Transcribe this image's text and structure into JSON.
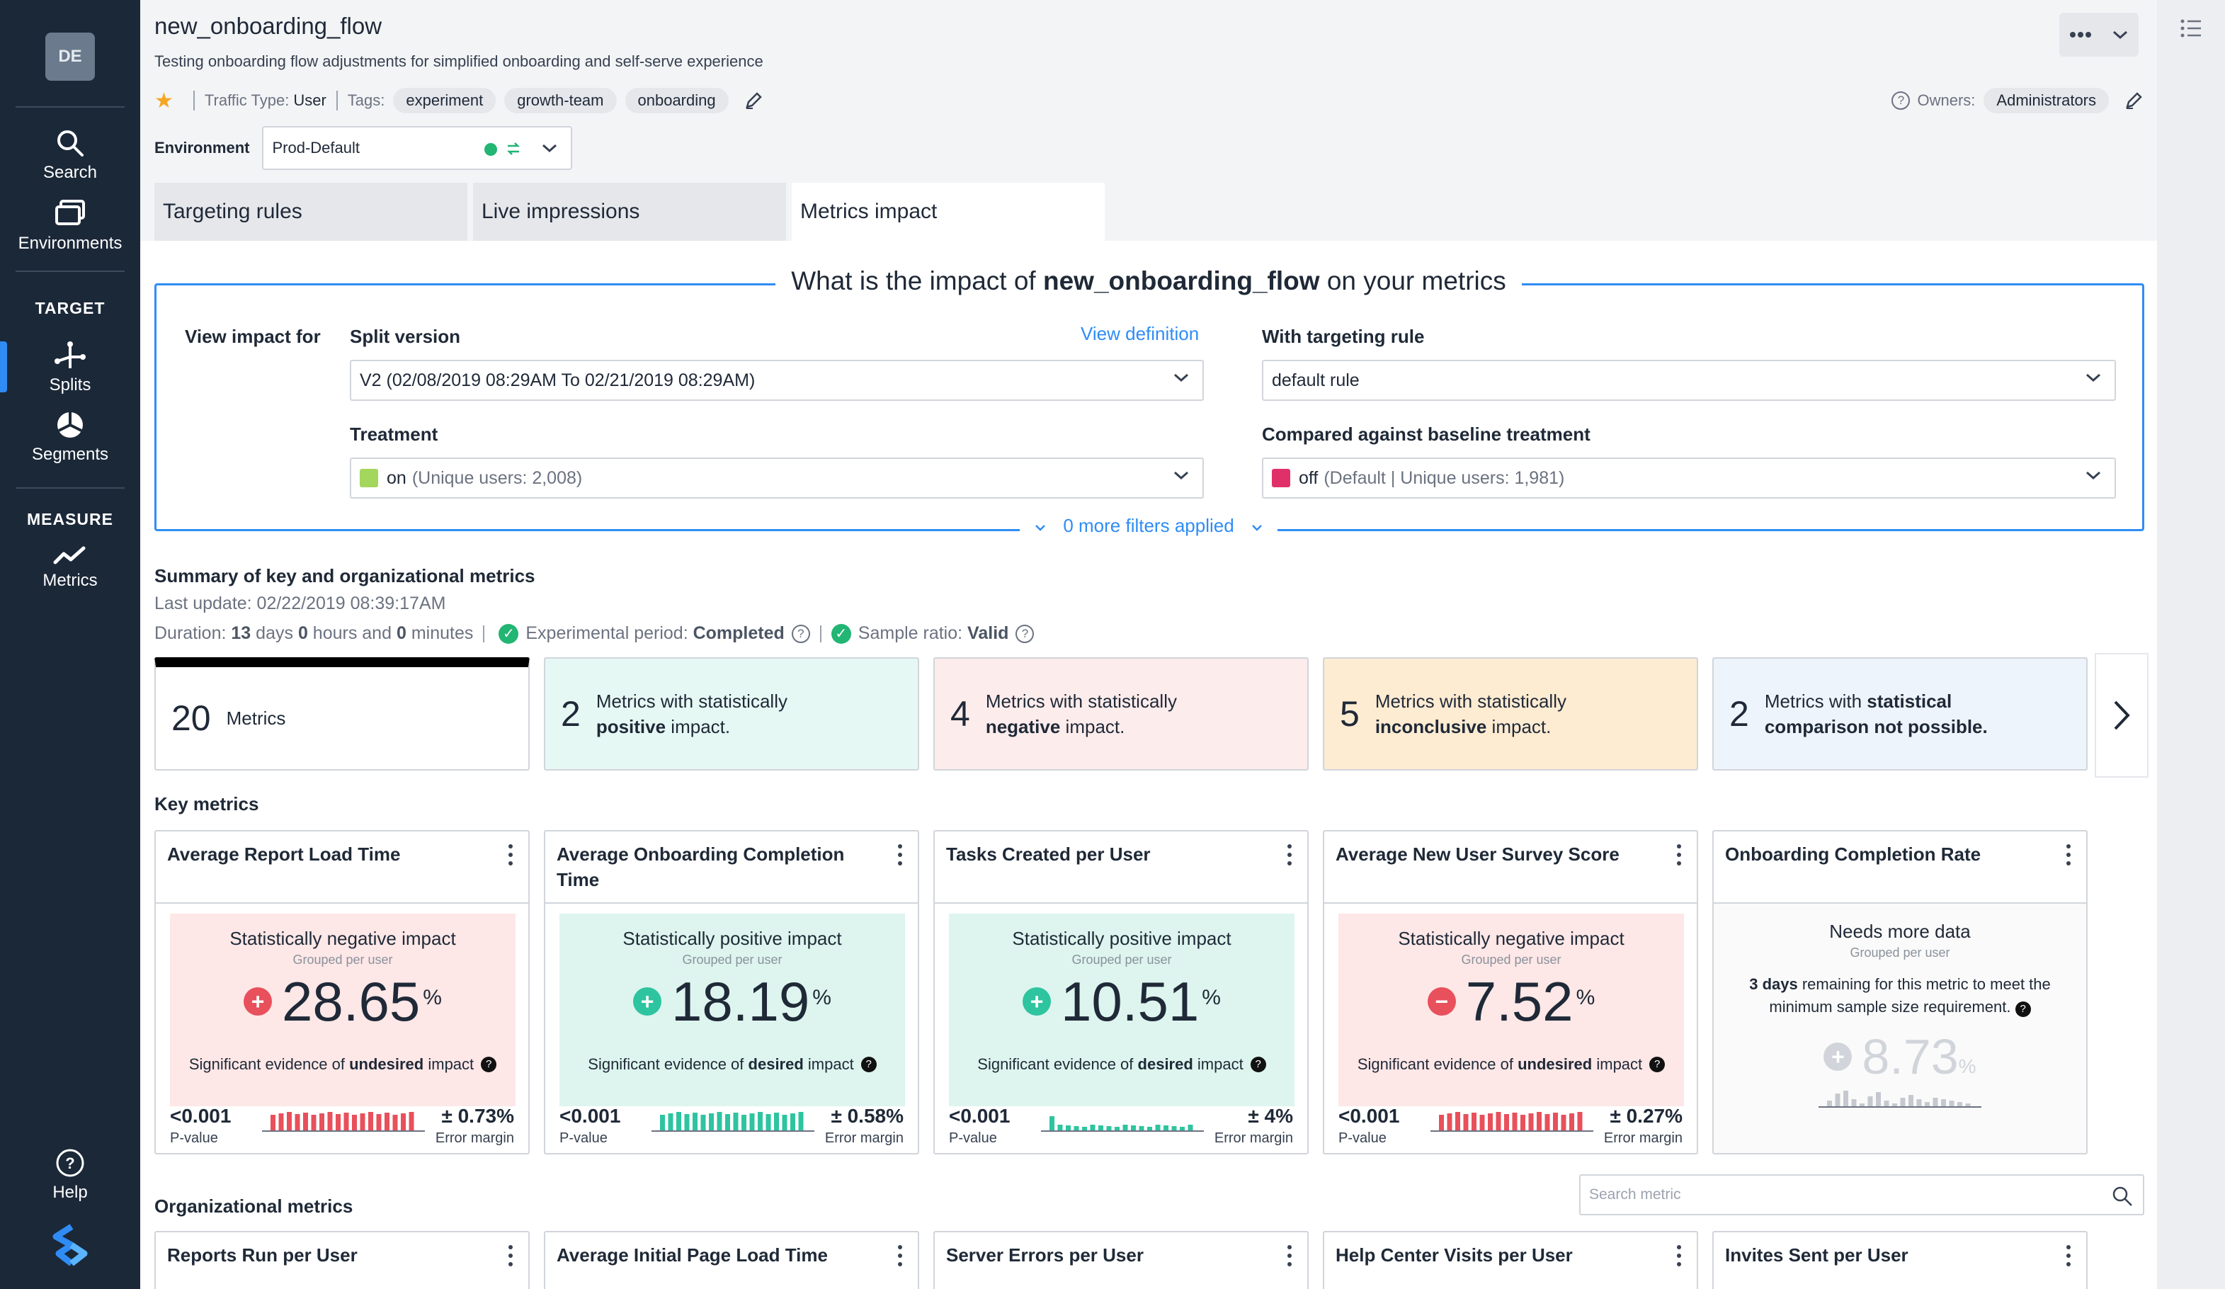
{
  "sidebar": {
    "avatar": "DE",
    "search": "Search",
    "environments": "Environments",
    "target_heading": "TARGET",
    "splits": "Splits",
    "segments": "Segments",
    "measure_heading": "MEASURE",
    "metrics": "Metrics",
    "help": "Help"
  },
  "header": {
    "flag_name": "new_onboarding_flow",
    "description": "Testing onboarding flow adjustments for simplified onboarding and self-serve experience",
    "traffic_type_label": "Traffic Type:",
    "traffic_type_value": "User",
    "tags_label": "Tags:",
    "tags": [
      "experiment",
      "growth-team",
      "onboarding"
    ],
    "owners_label": "Owners:",
    "owner": "Administrators",
    "environment_label": "Environment",
    "environment_value": "Prod-Default"
  },
  "tabs": [
    "Targeting rules",
    "Live impressions",
    "Metrics impact"
  ],
  "impact": {
    "title_prefix": "What is the impact of",
    "title_flag": "new_onboarding_flow",
    "title_suffix": "on your metrics",
    "view_impact_for": "View impact for",
    "split_version_label": "Split version",
    "view_definition": "View definition",
    "split_version_value": "V2 (02/08/2019 08:29AM To 02/21/2019 08:29AM)",
    "targeting_rule_label": "With targeting rule",
    "targeting_rule_value": "default rule",
    "treatment_label": "Treatment",
    "treatment_value": "on",
    "treatment_users": "(Unique users: 2,008)",
    "treatment_color": "#a3d65c",
    "baseline_label": "Compared against baseline treatment",
    "baseline_value": "off",
    "baseline_users": "(Default | Unique users: 1,981)",
    "baseline_color": "#e0306a",
    "filters": "0 more filters applied"
  },
  "summary": {
    "title": "Summary of key and organizational metrics",
    "last_update": "Last update: 02/22/2019 08:39:17AM",
    "duration_label": "Duration:",
    "duration_days": "13",
    "days_word": "days",
    "duration_hours": "0",
    "hours_word": "hours and",
    "duration_minutes": "0",
    "minutes_word": "minutes",
    "experimental_label": "Experimental period:",
    "experimental_value": "Completed",
    "sample_label": "Sample ratio:",
    "sample_value": "Valid",
    "cards": [
      {
        "num": "20",
        "text_a": "Metrics",
        "text_b": "",
        "text_c": ""
      },
      {
        "num": "2",
        "text_a": "Metrics with statistically",
        "text_b": "positive",
        "text_c": "impact."
      },
      {
        "num": "4",
        "text_a": "Metrics with statistically",
        "text_b": "negative",
        "text_c": "impact."
      },
      {
        "num": "5",
        "text_a": "Metrics with statistically",
        "text_b": "inconclusive",
        "text_c": "impact."
      },
      {
        "num": "2",
        "text_a": "Metrics with",
        "text_b": "statistical comparison not possible.",
        "text_c": ""
      }
    ]
  },
  "key_metrics": {
    "title": "Key metrics",
    "cards": [
      {
        "name": "Average Report Load Time",
        "status": "Statistically negative impact",
        "grouped": "Grouped per user",
        "value": "28.65",
        "pct": "%",
        "evidence_a": "Significant evidence of",
        "evidence_b": "undesired",
        "evidence_c": "impact",
        "pvalue": "<0.001",
        "pvalue_label": "P-value",
        "margin": "± 0.73%",
        "margin_label": "Error margin"
      },
      {
        "name": "Average Onboarding Completion Time",
        "status": "Statistically positive impact",
        "grouped": "Grouped per user",
        "value": "18.19",
        "pct": "%",
        "evidence_a": "Significant evidence of",
        "evidence_b": "desired",
        "evidence_c": "impact",
        "pvalue": "<0.001",
        "pvalue_label": "P-value",
        "margin": "± 0.58%",
        "margin_label": "Error margin"
      },
      {
        "name": "Tasks Created per User",
        "status": "Statistically positive impact",
        "grouped": "Grouped per user",
        "value": "10.51",
        "pct": "%",
        "evidence_a": "Significant evidence of",
        "evidence_b": "desired",
        "evidence_c": "impact",
        "pvalue": "<0.001",
        "pvalue_label": "P-value",
        "margin": "± 4%",
        "margin_label": "Error margin"
      },
      {
        "name": "Average New User Survey Score",
        "status": "Statistically negative impact",
        "grouped": "Grouped per user",
        "value": "7.52",
        "pct": "%",
        "evidence_a": "Significant evidence of",
        "evidence_b": "undesired",
        "evidence_c": "impact",
        "pvalue": "<0.001",
        "pvalue_label": "P-value",
        "margin": "± 0.27%",
        "margin_label": "Error margin"
      },
      {
        "name": "Onboarding Completion Rate",
        "status": "Needs more data",
        "grouped": "Grouped per user",
        "remaining_days": "3 days",
        "remaining_text": "remaining for this metric to meet the minimum sample size requirement.",
        "value": "8.73",
        "pct": "%"
      }
    ]
  },
  "org_metrics": {
    "title": "Organizational metrics",
    "search_placeholder": "Search metric",
    "cards": [
      "Reports Run per User",
      "Average Initial Page Load Time",
      "Server Errors per User",
      "Help Center Visits per User",
      "Invites Sent per User"
    ]
  },
  "colors": {
    "accent": "#2f8cf5",
    "negative": "#e8505b",
    "positive": "#2ec4a0",
    "sidebar": "#1b2838"
  }
}
